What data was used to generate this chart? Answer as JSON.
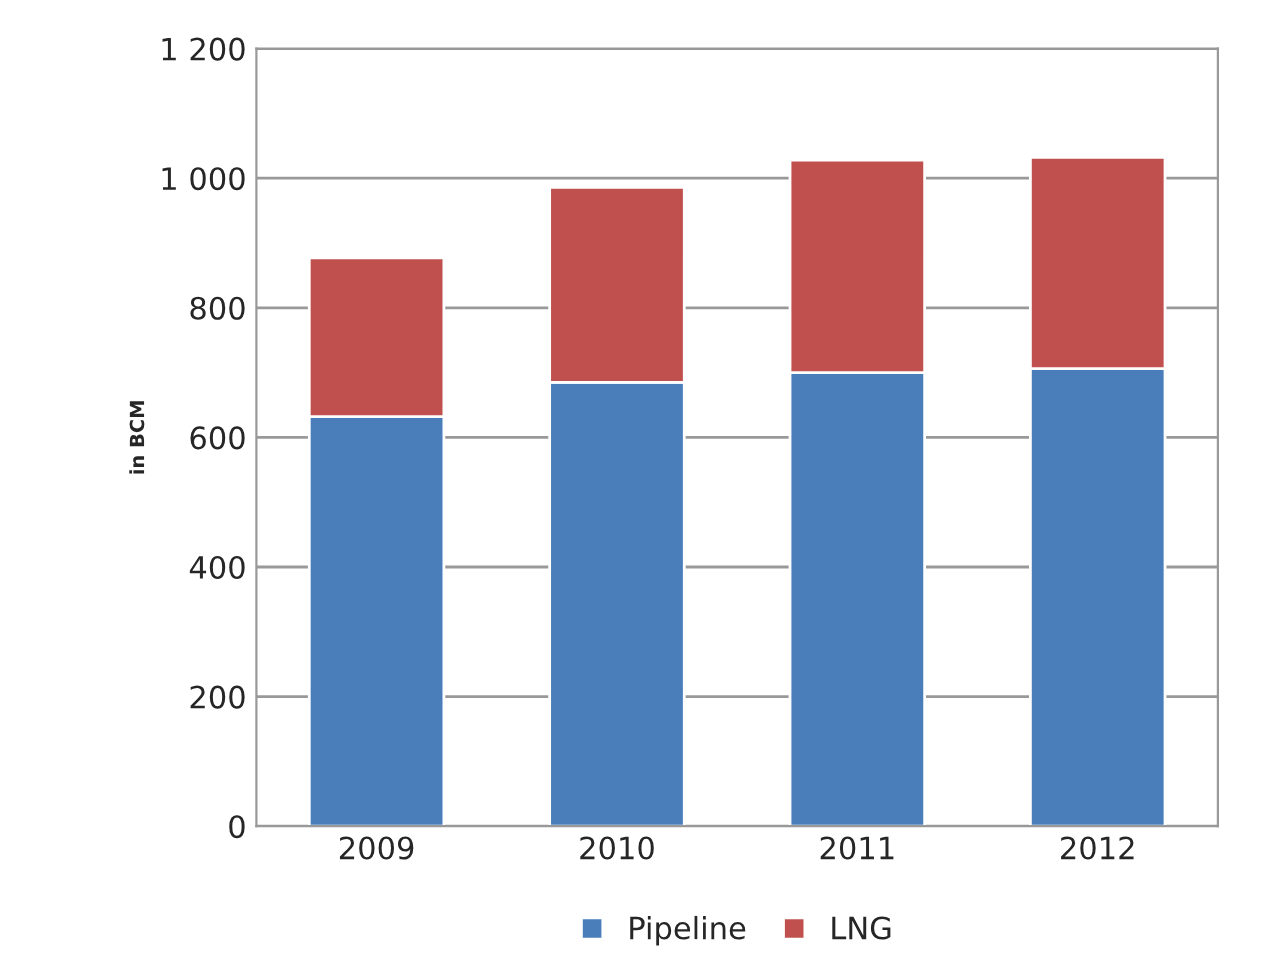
{
  "chart_data": {
    "type": "bar",
    "stacked": true,
    "ylabel": "in BCM",
    "categories": [
      "2009",
      "2010",
      "2011",
      "2012"
    ],
    "series": [
      {
        "name": "Pipeline",
        "color": "#4a7ebb",
        "values": [
          632,
          685,
          700,
          706
        ]
      },
      {
        "name": "LNG",
        "color": "#c0504d",
        "values": [
          245,
          301,
          328,
          326
        ]
      }
    ],
    "ylim": [
      0,
      1200
    ],
    "yticks": [
      0,
      {
        "value": 200,
        "label": "200"
      },
      {
        "value": 400,
        "label": "400"
      },
      {
        "value": 600,
        "label": "600"
      },
      {
        "value": 800,
        "label": "800"
      },
      {
        "value": 1000,
        "label": "1 000"
      },
      {
        "value": 1200,
        "label": "1 200"
      }
    ],
    "grid": "y",
    "legend": "bottom"
  }
}
